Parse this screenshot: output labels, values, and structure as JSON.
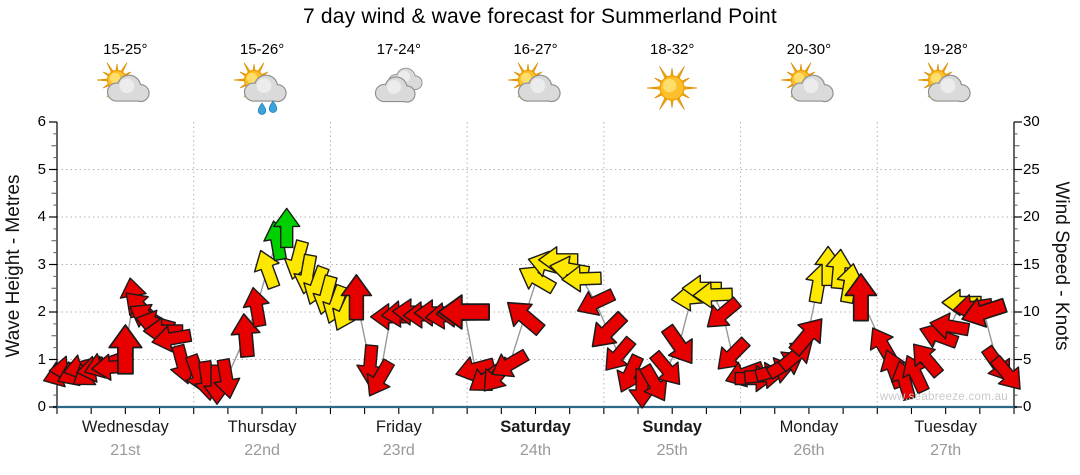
{
  "title": "7 day wind & wave forecast for Summerland Point",
  "watermark": "www.seabreeze.com.au",
  "days": [
    {
      "name": "Wednesday",
      "date": "21st",
      "temp": "15-25°",
      "icon": "sun-cloud",
      "weekend": false
    },
    {
      "name": "Thursday",
      "date": "22nd",
      "temp": "15-26°",
      "icon": "sun-cloud-rain",
      "weekend": false
    },
    {
      "name": "Friday",
      "date": "23rd",
      "temp": "17-24°",
      "icon": "clouds",
      "weekend": false
    },
    {
      "name": "Saturday",
      "date": "24th",
      "temp": "16-27°",
      "icon": "sun-cloud",
      "weekend": true
    },
    {
      "name": "Sunday",
      "date": "25th",
      "temp": "18-32°",
      "icon": "sun",
      "weekend": true
    },
    {
      "name": "Monday",
      "date": "26th",
      "temp": "20-30°",
      "icon": "sun-cloud",
      "weekend": false
    },
    {
      "name": "Tuesday",
      "date": "27th",
      "temp": "19-28°",
      "icon": "sun-cloud",
      "weekend": false
    }
  ],
  "chart_data": {
    "type": "wind-arrow-timeseries",
    "left_axis": {
      "label": "Wave Height - Metres",
      "min": 0,
      "max": 6,
      "ticks": [
        0,
        1,
        2,
        3,
        4,
        5,
        6
      ]
    },
    "right_axis": {
      "label": "Wind Speed - Knots",
      "min": 0,
      "max": 30,
      "ticks": [
        0,
        5,
        10,
        15,
        20,
        25,
        30
      ]
    },
    "grid": "dotted horizontal each metre, dotted vertical each day boundary",
    "arrow_colors": {
      "r": "#E60000",
      "y": "#FFE800",
      "g": "#00CF00"
    },
    "encoding": "each arrow = [t days from Wed 00:00, wind speed knots, direction deg clockwise from up, color bucket, optional scale]",
    "wind_arrows": [
      [
        0.04,
        3.5,
        250,
        "r"
      ],
      [
        0.09,
        4,
        265,
        "r"
      ],
      [
        0.14,
        3.6,
        245,
        "r"
      ],
      [
        0.19,
        4.2,
        255,
        "r"
      ],
      [
        0.24,
        3.6,
        235,
        "r"
      ],
      [
        0.29,
        4,
        260,
        "r"
      ],
      [
        0.34,
        4.4,
        250,
        "r"
      ],
      [
        0.4,
        4.2,
        265,
        "r"
      ],
      [
        0.5,
        6,
        0,
        "r",
        1.25
      ],
      [
        0.56,
        11.5,
        350,
        "r"
      ],
      [
        0.61,
        10.5,
        315,
        "r"
      ],
      [
        0.66,
        9.5,
        300,
        "r"
      ],
      [
        0.72,
        8.8,
        285,
        "r"
      ],
      [
        0.78,
        8,
        270,
        "r"
      ],
      [
        0.84,
        7.2,
        260,
        "r"
      ],
      [
        0.92,
        4.5,
        165,
        "r"
      ],
      [
        1.03,
        3.5,
        160,
        "r"
      ],
      [
        1.1,
        2.8,
        172,
        "r"
      ],
      [
        1.17,
        2.4,
        180,
        "r"
      ],
      [
        1.24,
        3,
        170,
        "r"
      ],
      [
        1.38,
        7.5,
        355,
        "r",
        1.1
      ],
      [
        1.46,
        10.5,
        350,
        "r"
      ],
      [
        1.54,
        14.5,
        340,
        "y"
      ],
      [
        1.61,
        17.5,
        350,
        "g"
      ],
      [
        1.68,
        18.8,
        0,
        "g"
      ],
      [
        1.76,
        15.5,
        195,
        "y"
      ],
      [
        1.83,
        14,
        190,
        "y"
      ],
      [
        1.9,
        12.8,
        200,
        "y"
      ],
      [
        1.97,
        11.8,
        195,
        "y"
      ],
      [
        2.04,
        10.8,
        200,
        "y"
      ],
      [
        2.11,
        10,
        205,
        "y"
      ],
      [
        2.19,
        11.5,
        0,
        "r",
        1.15
      ],
      [
        2.29,
        4.5,
        185,
        "r"
      ],
      [
        2.36,
        3,
        210,
        "r"
      ],
      [
        2.44,
        9.5,
        270,
        "r"
      ],
      [
        2.52,
        9.8,
        265,
        "r"
      ],
      [
        2.6,
        10,
        272,
        "r"
      ],
      [
        2.68,
        9.7,
        268,
        "r"
      ],
      [
        2.76,
        9.9,
        270,
        "r"
      ],
      [
        2.84,
        9.6,
        265,
        "r"
      ],
      [
        2.92,
        9.8,
        270,
        "r"
      ],
      [
        2.98,
        10,
        270,
        "r",
        1.3
      ],
      [
        3.06,
        4,
        255,
        "r"
      ],
      [
        3.14,
        3,
        235,
        "r"
      ],
      [
        3.22,
        3.3,
        220,
        "r"
      ],
      [
        3.31,
        4.5,
        240,
        "r"
      ],
      [
        3.42,
        9.5,
        310,
        "r",
        1.1
      ],
      [
        3.51,
        13.5,
        300,
        "y"
      ],
      [
        3.59,
        15,
        285,
        "y"
      ],
      [
        3.67,
        15.5,
        270,
        "y"
      ],
      [
        3.75,
        14.5,
        280,
        "y"
      ],
      [
        3.84,
        13.5,
        268,
        "y"
      ],
      [
        3.94,
        11,
        245,
        "r"
      ],
      [
        4.03,
        8,
        225,
        "r",
        1.1
      ],
      [
        4.11,
        5.5,
        220,
        "r"
      ],
      [
        4.19,
        3.5,
        205,
        "r"
      ],
      [
        4.28,
        2,
        180,
        "r"
      ],
      [
        4.37,
        2.5,
        150,
        "r"
      ],
      [
        4.46,
        4,
        140,
        "r"
      ],
      [
        4.55,
        6.5,
        145,
        "r",
        1.1
      ],
      [
        4.64,
        11.5,
        265,
        "y"
      ],
      [
        4.72,
        12.5,
        270,
        "y"
      ],
      [
        4.8,
        11.8,
        268,
        "y"
      ],
      [
        4.87,
        9.8,
        230,
        "r"
      ],
      [
        4.94,
        5.5,
        225,
        "r"
      ],
      [
        5.03,
        3.5,
        250,
        "r"
      ],
      [
        5.1,
        3,
        90,
        "r"
      ],
      [
        5.17,
        3.3,
        85,
        "r"
      ],
      [
        5.25,
        3.8,
        75,
        "r"
      ],
      [
        5.33,
        4.5,
        60,
        "r"
      ],
      [
        5.41,
        5.5,
        50,
        "r"
      ],
      [
        5.49,
        7.5,
        40,
        "r",
        1.1
      ],
      [
        5.57,
        13,
        10,
        "y"
      ],
      [
        5.64,
        14.8,
        0,
        "y"
      ],
      [
        5.72,
        14.5,
        5,
        "y"
      ],
      [
        5.8,
        13,
        10,
        "y"
      ],
      [
        5.88,
        11.5,
        0,
        "r",
        1.2
      ],
      [
        6.04,
        6.5,
        330,
        "r"
      ],
      [
        6.12,
        4,
        340,
        "r"
      ],
      [
        6.2,
        2.8,
        345,
        "r"
      ],
      [
        6.28,
        3.5,
        335,
        "r"
      ],
      [
        6.36,
        5,
        320,
        "r"
      ],
      [
        6.45,
        7.5,
        290,
        "r"
      ],
      [
        6.53,
        8.5,
        280,
        "r"
      ],
      [
        6.62,
        11,
        270,
        "y"
      ],
      [
        6.7,
        10.5,
        262,
        "r"
      ],
      [
        6.78,
        10,
        252,
        "r",
        1.15
      ],
      [
        6.88,
        4.5,
        145,
        "r"
      ],
      [
        6.95,
        3.5,
        140,
        "r"
      ]
    ]
  }
}
